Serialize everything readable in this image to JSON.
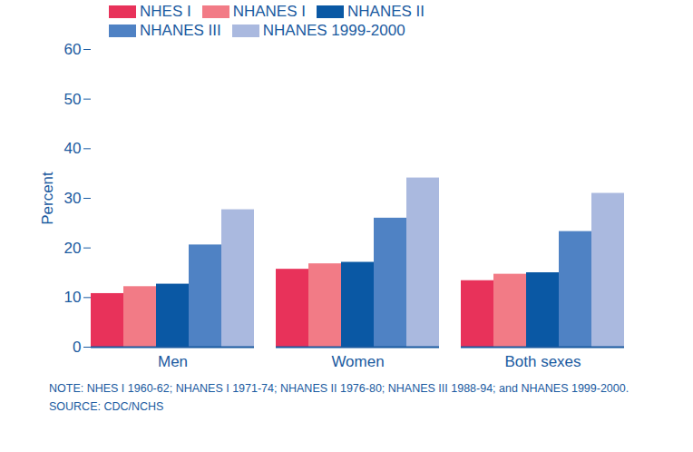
{
  "chart_data": {
    "type": "bar",
    "categories": [
      "Men",
      "Women",
      "Both sexes"
    ],
    "series": [
      {
        "name": "NHES I",
        "color": "#e8325a",
        "values": [
          10.8,
          15.7,
          13.4
        ]
      },
      {
        "name": "NHANES I",
        "color": "#f27b86",
        "values": [
          12.2,
          16.8,
          14.7
        ]
      },
      {
        "name": "NHANES II",
        "color": "#0a58a4",
        "values": [
          12.7,
          17.1,
          15.0
        ]
      },
      {
        "name": "NHANES III",
        "color": "#4f82c4",
        "values": [
          20.6,
          26.0,
          23.3
        ]
      },
      {
        "name": "NHANES 1999-2000",
        "color": "#aab9df",
        "values": [
          27.7,
          34.1,
          31.0
        ]
      }
    ],
    "y_label": "Percent",
    "ylim": [
      0,
      60
    ],
    "yticks": [
      0,
      10,
      20,
      30,
      40,
      50,
      60
    ],
    "grid": false,
    "legend": "top",
    "notes": [
      "NOTE: NHES I 1960-62; NHANES I 1971-74; NHANES II 1976-80; NHANES III 1988-94; and NHANES 1999-2000.",
      "SOURCE: CDC/NCHS"
    ]
  }
}
